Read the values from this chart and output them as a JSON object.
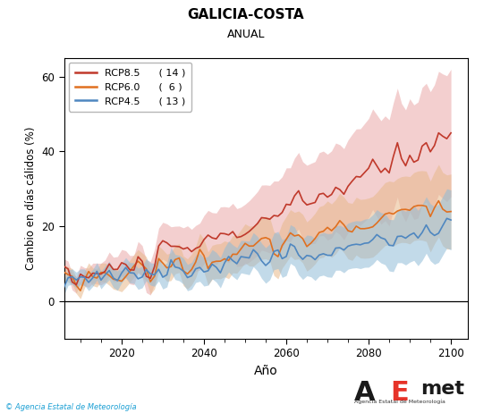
{
  "title": "GALICIA-COSTA",
  "subtitle": "ANUAL",
  "xlabel": "Año",
  "ylabel": "Cambio en días cálidos (%)",
  "xlim": [
    2006,
    2104
  ],
  "ylim": [
    -10,
    65
  ],
  "yticks": [
    0,
    20,
    40,
    60
  ],
  "xticks": [
    2020,
    2040,
    2060,
    2080,
    2100
  ],
  "legend_entries": [
    {
      "label": "RCP8.5",
      "count": "( 14 )",
      "color": "#c0392b"
    },
    {
      "label": "RCP6.0",
      "count": "(  6 )",
      "color": "#e07020"
    },
    {
      "label": "RCP4.5",
      "count": "( 13 )",
      "color": "#4f87c0"
    }
  ],
  "fill_colors": [
    "#e8a0a0",
    "#e8b88a",
    "#90bcd8"
  ],
  "background_color": "#ffffff",
  "hline_y": 0,
  "start_year": 2006,
  "end_year": 2101,
  "credit": "© Agencia Estatal de Meteorología"
}
